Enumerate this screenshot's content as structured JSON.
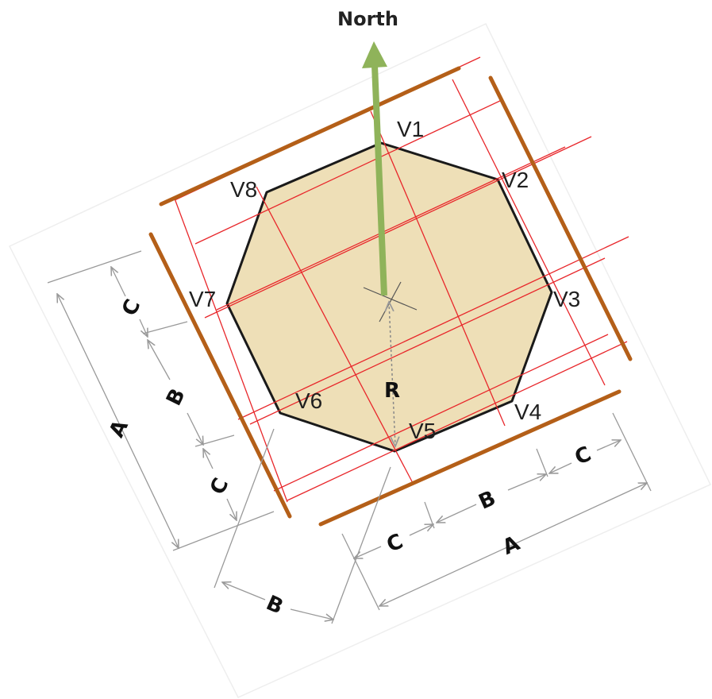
{
  "title": "North",
  "colors": {
    "octagon_fill": "#eedfb7",
    "octagon_edge": "#1a1a1a",
    "grid_line": "#e8272b",
    "boundary": "#b45f18",
    "north_arrow": "#8fb35a",
    "dimension_line": "#999999"
  },
  "vertices": [
    "V1",
    "V2",
    "V3",
    "V4",
    "V5",
    "V6",
    "V7",
    "V8"
  ],
  "radius_label": "R",
  "dimensions": {
    "left": {
      "c_top": "C",
      "b": "B",
      "c_bottom": "C",
      "a": "A"
    },
    "bottom": {
      "c_left": "C",
      "b": "B",
      "c_right": "C",
      "a": "A"
    },
    "b_extra": "B"
  }
}
